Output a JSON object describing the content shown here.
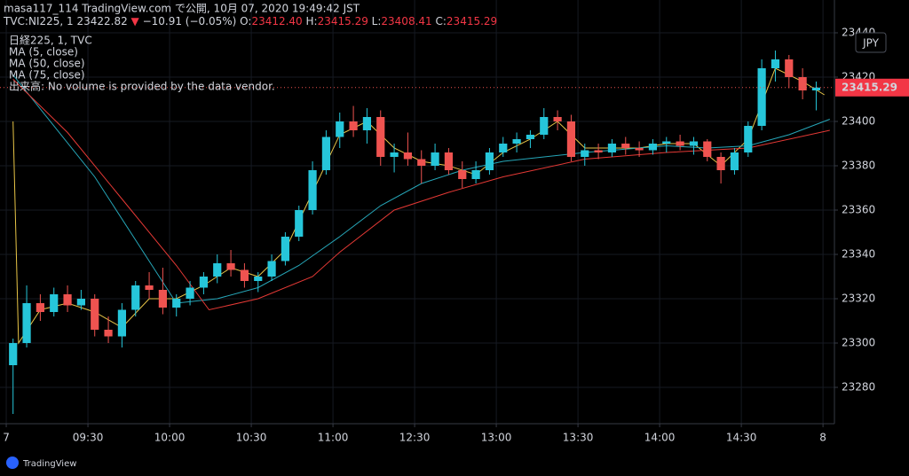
{
  "chart_data": {
    "type": "candlestick",
    "title": "masa117_114 TradingView.com で公開, 10月 07, 2020 19:49:42 JST",
    "quote": [
      [
        "TVC:NI225, 1 23422.82 ",
        "#d1d4dc"
      ],
      [
        "▼",
        "#f23645"
      ],
      [
        " −10.91 (−0.05%) O:",
        "#d1d4dc"
      ],
      [
        "23412.40",
        "#f23645"
      ],
      [
        " H:",
        "#d1d4dc"
      ],
      [
        "23415.29",
        "#f23645"
      ],
      [
        " L:",
        "#d1d4dc"
      ],
      [
        "23408.41",
        "#f23645"
      ],
      [
        " C:",
        "#d1d4dc"
      ],
      [
        "23415.29",
        "#f23645"
      ]
    ],
    "symbol": "日経225, 1, TVC",
    "volume_note": "出来高: No volume is provided by the data vendor.",
    "currency": "JPY",
    "brand": "TradingView",
    "up_color": "#26c6da",
    "down_color": "#ef5350",
    "xlim": [
      -2.3,
      304.2
    ],
    "xticks": [
      {
        "value": 0,
        "label": "7"
      },
      {
        "value": 30,
        "label": "09:30"
      },
      {
        "value": 60,
        "label": "10:00"
      },
      {
        "value": 90,
        "label": "10:30"
      },
      {
        "value": 120,
        "label": "11:00"
      },
      {
        "value": 150,
        "label": "12:30"
      },
      {
        "value": 180,
        "label": "13:00"
      },
      {
        "value": 210,
        "label": "13:30"
      },
      {
        "value": 240,
        "label": "14:00"
      },
      {
        "value": 270,
        "label": "14:30"
      },
      {
        "value": 300,
        "label": "8"
      }
    ],
    "ylim": [
      23263.6,
      23442.8
    ],
    "yticks": [
      23280,
      23300,
      23320,
      23340,
      23360,
      23380,
      23400,
      23420,
      23440
    ],
    "grid": true,
    "last_price": 23415.29,
    "candles": [
      {
        "x": 0,
        "open": 23290,
        "high": 23302,
        "low": 23268,
        "close": 23300
      },
      {
        "x": 5,
        "open": 23300,
        "high": 23326,
        "low": 23298,
        "close": 23318
      },
      {
        "x": 10,
        "open": 23318,
        "high": 23322,
        "low": 23310,
        "close": 23314
      },
      {
        "x": 15,
        "open": 23314,
        "high": 23325,
        "low": 23312,
        "close": 23322
      },
      {
        "x": 20,
        "open": 23322,
        "high": 23326,
        "low": 23314,
        "close": 23317
      },
      {
        "x": 25,
        "open": 23317,
        "high": 23324,
        "low": 23315,
        "close": 23320
      },
      {
        "x": 30,
        "open": 23320,
        "high": 23322,
        "low": 23303,
        "close": 23306
      },
      {
        "x": 35,
        "open": 23306,
        "high": 23312,
        "low": 23300,
        "close": 23303
      },
      {
        "x": 40,
        "open": 23303,
        "high": 23318,
        "low": 23298,
        "close": 23315
      },
      {
        "x": 45,
        "open": 23315,
        "high": 23328,
        "low": 23312,
        "close": 23326
      },
      {
        "x": 50,
        "open": 23326,
        "high": 23332,
        "low": 23320,
        "close": 23324
      },
      {
        "x": 55,
        "open": 23324,
        "high": 23334,
        "low": 23313,
        "close": 23316
      },
      {
        "x": 60,
        "open": 23316,
        "high": 23322,
        "low": 23312,
        "close": 23320
      },
      {
        "x": 65,
        "open": 23320,
        "high": 23328,
        "low": 23317,
        "close": 23325
      },
      {
        "x": 70,
        "open": 23325,
        "high": 23332,
        "low": 23322,
        "close": 23330
      },
      {
        "x": 75,
        "open": 23330,
        "high": 23340,
        "low": 23327,
        "close": 23336
      },
      {
        "x": 80,
        "open": 23336,
        "high": 23342,
        "low": 23330,
        "close": 23333
      },
      {
        "x": 85,
        "open": 23333,
        "high": 23336,
        "low": 23325,
        "close": 23328
      },
      {
        "x": 90,
        "open": 23328,
        "high": 23332,
        "low": 23323,
        "close": 23330
      },
      {
        "x": 95,
        "open": 23330,
        "high": 23340,
        "low": 23328,
        "close": 23337
      },
      {
        "x": 100,
        "open": 23337,
        "high": 23350,
        "low": 23335,
        "close": 23348
      },
      {
        "x": 105,
        "open": 23348,
        "high": 23362,
        "low": 23346,
        "close": 23360
      },
      {
        "x": 110,
        "open": 23360,
        "high": 23382,
        "low": 23358,
        "close": 23378
      },
      {
        "x": 115,
        "open": 23378,
        "high": 23396,
        "low": 23376,
        "close": 23393
      },
      {
        "x": 120,
        "open": 23393,
        "high": 23404,
        "low": 23388,
        "close": 23400
      },
      {
        "x": 125,
        "open": 23400,
        "high": 23407,
        "low": 23393,
        "close": 23396
      },
      {
        "x": 130,
        "open": 23396,
        "high": 23406,
        "low": 23390,
        "close": 23402
      },
      {
        "x": 135,
        "open": 23402,
        "high": 23405,
        "low": 23380,
        "close": 23384
      },
      {
        "x": 140,
        "open": 23384,
        "high": 23390,
        "low": 23377,
        "close": 23386
      },
      {
        "x": 145,
        "open": 23386,
        "high": 23395,
        "low": 23380,
        "close": 23383
      },
      {
        "x": 150,
        "open": 23383,
        "high": 23387,
        "low": 23372,
        "close": 23380
      },
      {
        "x": 155,
        "open": 23380,
        "high": 23390,
        "low": 23378,
        "close": 23386
      },
      {
        "x": 160,
        "open": 23386,
        "high": 23388,
        "low": 23376,
        "close": 23378
      },
      {
        "x": 165,
        "open": 23378,
        "high": 23382,
        "low": 23370,
        "close": 23374
      },
      {
        "x": 170,
        "open": 23374,
        "high": 23382,
        "low": 23372,
        "close": 23378
      },
      {
        "x": 175,
        "open": 23378,
        "high": 23388,
        "low": 23376,
        "close": 23386
      },
      {
        "x": 180,
        "open": 23386,
        "high": 23393,
        "low": 23384,
        "close": 23390
      },
      {
        "x": 185,
        "open": 23390,
        "high": 23395,
        "low": 23386,
        "close": 23392
      },
      {
        "x": 190,
        "open": 23392,
        "high": 23396,
        "low": 23388,
        "close": 23394
      },
      {
        "x": 195,
        "open": 23394,
        "high": 23406,
        "low": 23392,
        "close": 23402
      },
      {
        "x": 200,
        "open": 23402,
        "high": 23405,
        "low": 23396,
        "close": 23400
      },
      {
        "x": 205,
        "open": 23400,
        "high": 23403,
        "low": 23382,
        "close": 23384
      },
      {
        "x": 210,
        "open": 23384,
        "high": 23390,
        "low": 23380,
        "close": 23387
      },
      {
        "x": 215,
        "open": 23387,
        "high": 23390,
        "low": 23383,
        "close": 23386
      },
      {
        "x": 220,
        "open": 23386,
        "high": 23392,
        "low": 23384,
        "close": 23390
      },
      {
        "x": 225,
        "open": 23390,
        "high": 23393,
        "low": 23385,
        "close": 23388
      },
      {
        "x": 230,
        "open": 23388,
        "high": 23391,
        "low": 23384,
        "close": 23387
      },
      {
        "x": 235,
        "open": 23387,
        "high": 23392,
        "low": 23385,
        "close": 23390
      },
      {
        "x": 240,
        "open": 23390,
        "high": 23393,
        "low": 23386,
        "close": 23391
      },
      {
        "x": 245,
        "open": 23391,
        "high": 23394,
        "low": 23387,
        "close": 23389
      },
      {
        "x": 250,
        "open": 23389,
        "high": 23393,
        "low": 23385,
        "close": 23391
      },
      {
        "x": 255,
        "open": 23391,
        "high": 23392,
        "low": 23382,
        "close": 23384
      },
      {
        "x": 260,
        "open": 23384,
        "high": 23386,
        "low": 23372,
        "close": 23378
      },
      {
        "x": 265,
        "open": 23378,
        "high": 23388,
        "low": 23376,
        "close": 23386
      },
      {
        "x": 270,
        "open": 23386,
        "high": 23400,
        "low": 23384,
        "close": 23398
      },
      {
        "x": 275,
        "open": 23398,
        "high": 23428,
        "low": 23396,
        "close": 23424
      },
      {
        "x": 280,
        "open": 23424,
        "high": 23432,
        "low": 23418,
        "close": 23428
      },
      {
        "x": 285,
        "open": 23428,
        "high": 23430,
        "low": 23415,
        "close": 23420
      },
      {
        "x": 290,
        "open": 23420,
        "high": 23424,
        "low": 23410,
        "close": 23414
      },
      {
        "x": 295,
        "open": 23414,
        "high": 23418,
        "low": 23405,
        "close": 23415.29
      }
    ],
    "series": [
      {
        "name": "MA (5, close)",
        "color": "#e8c547",
        "x": [
          0,
          2,
          10,
          20,
          30,
          40,
          50,
          60,
          70,
          80,
          90,
          100,
          110,
          120,
          130,
          140,
          150,
          160,
          170,
          180,
          190,
          200,
          210,
          220,
          230,
          240,
          250,
          260,
          270,
          280,
          290,
          298
        ],
        "values": [
          23400,
          23300,
          23315,
          23318,
          23314,
          23307,
          23320,
          23320,
          23326,
          23334,
          23330,
          23342,
          23368,
          23394,
          23400,
          23388,
          23382,
          23380,
          23376,
          23386,
          23392,
          23400,
          23388,
          23388,
          23388,
          23390,
          23390,
          23380,
          23392,
          23424,
          23418,
          23412
        ]
      },
      {
        "name": "MA (50, close)",
        "color": "#26a6b8",
        "x": [
          0,
          30,
          60,
          75,
          90,
          105,
          120,
          135,
          150,
          165,
          180,
          210,
          240,
          255,
          270,
          285,
          300
        ],
        "values": [
          23421,
          23375,
          23318,
          23320,
          23325,
          23335,
          23348,
          23362,
          23372,
          23378,
          23382,
          23386,
          23389,
          23388,
          23389,
          23394,
          23401
        ]
      },
      {
        "name": "MA (75, close)",
        "color": "#e53935",
        "x": [
          0,
          20,
          40,
          60,
          72,
          90,
          110,
          120,
          140,
          160,
          180,
          210,
          240,
          270,
          300
        ],
        "values": [
          23419,
          23395,
          23365,
          23335,
          23315,
          23320,
          23330,
          23341,
          23360,
          23368,
          23375,
          23383,
          23386,
          23388,
          23396
        ]
      }
    ]
  }
}
